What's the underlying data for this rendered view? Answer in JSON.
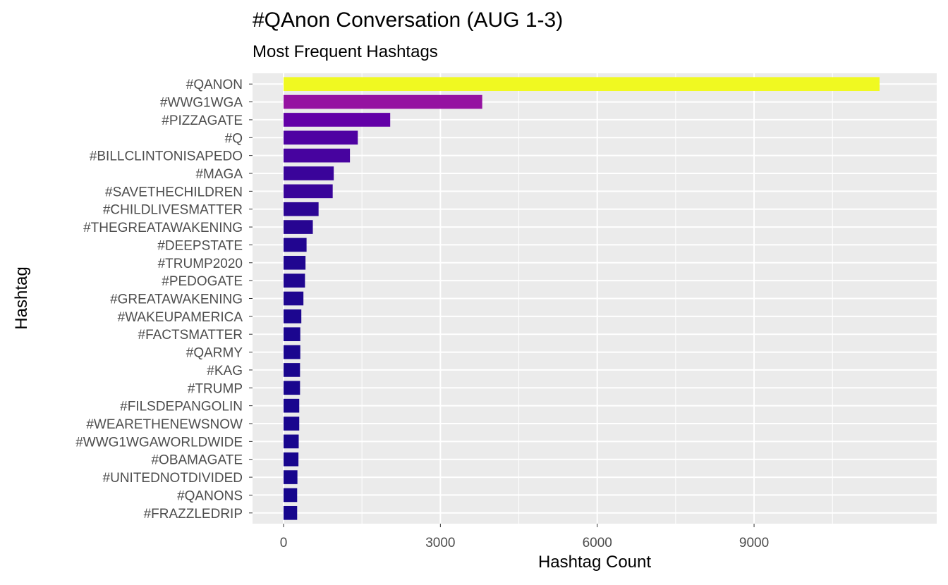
{
  "chart_data": {
    "type": "bar",
    "orientation": "horizontal",
    "title": "#QAnon Conversation (AUG 1-3)",
    "subtitle": "Most Frequent Hashtags",
    "xlabel": "Hashtag Count",
    "ylabel": "Hashtag",
    "xlim": [
      0,
      11900
    ],
    "xticks": [
      0,
      3000,
      6000,
      9000
    ],
    "xtick_labels": [
      "0",
      "3000",
      "6000",
      "9000"
    ],
    "grid": true,
    "legend": "none",
    "categories": [
      "#QANON",
      "#WWG1WGA",
      "#PIZZAGATE",
      "#Q",
      "#BILLCLINTONISAPEDO",
      "#MAGA",
      "#SAVETHECHILDREN",
      "#CHILDLIVESMATTER",
      "#THEGREATAWAKENING",
      "#DEEPSTATE",
      "#TRUMP2020",
      "#PEDOGATE",
      "#GREATAWAKENING",
      "#WAKEUPAMERICA",
      "#FACTSMATTER",
      "#QARMY",
      "#KAG",
      "#TRUMP",
      "#FILSDEPANGOLIN",
      "#WEARETHENEWSNOW",
      "#WWG1WGAWORLDWIDE",
      "#OBAMAGATE",
      "#UNITEDNOTDIVIDED",
      "#QANONS",
      "#FRAZZLEDRIP"
    ],
    "values": [
      11400,
      3800,
      2040,
      1420,
      1270,
      960,
      940,
      670,
      560,
      440,
      420,
      410,
      380,
      340,
      320,
      320,
      315,
      315,
      300,
      300,
      290,
      285,
      265,
      260,
      260
    ],
    "colors": [
      "#f0f921",
      "#9512a1",
      "#6300a7",
      "#4e02a2",
      "#47039f",
      "#3a049a",
      "#39049a",
      "#2c0594",
      "#270591",
      "#210590",
      "#200690",
      "#200690",
      "#1f0690",
      "#1c068f",
      "#1b068f",
      "#1b068f",
      "#1a068e",
      "#1a068e",
      "#19068e",
      "#19068e",
      "#18068e",
      "#18068e",
      "#17068d",
      "#16068d",
      "#16068d"
    ]
  }
}
